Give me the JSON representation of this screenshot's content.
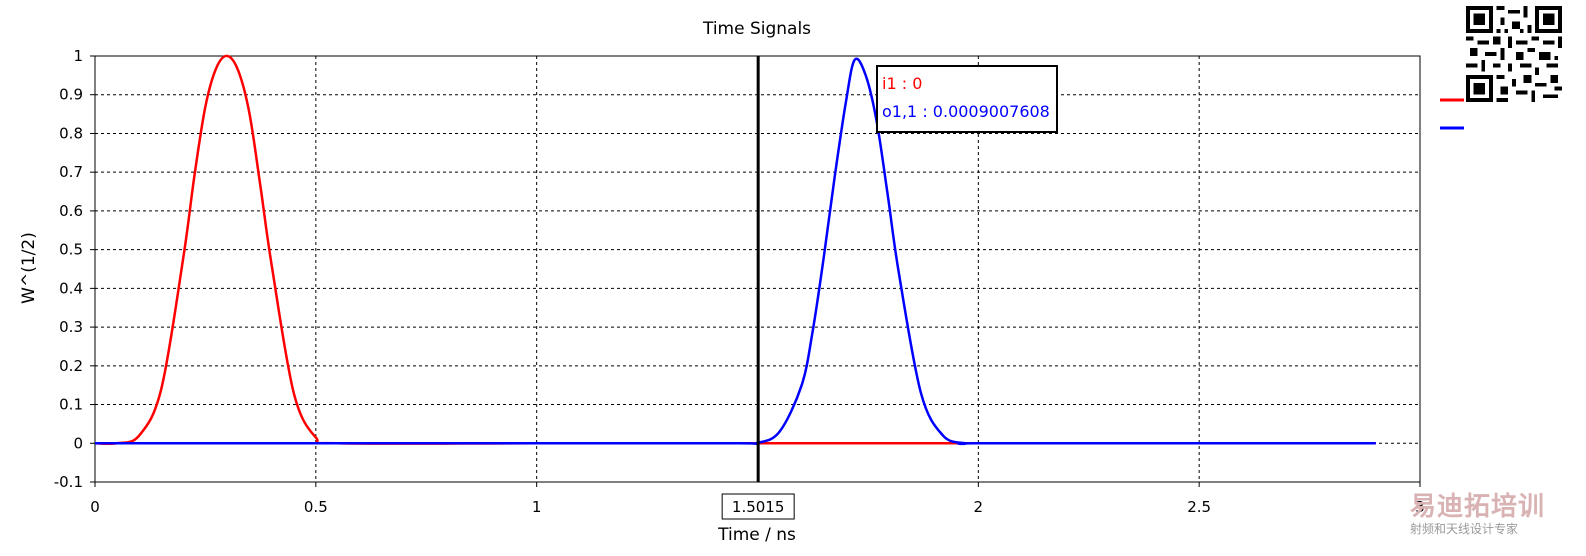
{
  "chart_data": {
    "type": "line",
    "title": "Time Signals",
    "xlabel": "Time / ns",
    "ylabel": "W^(1/2)",
    "xlim": [
      0,
      3
    ],
    "ylim": [
      -0.1,
      1
    ],
    "x_ticks": [
      "0",
      "0.5",
      "1",
      "1.5015",
      "2",
      "2.5",
      "3"
    ],
    "x_tick_values": [
      0,
      0.5,
      1,
      1.5015,
      2,
      2.5,
      3
    ],
    "y_ticks": [
      "-0.1",
      "0",
      "0.1",
      "0.2",
      "0.3",
      "0.4",
      "0.5",
      "0.6",
      "0.7",
      "0.8",
      "0.9",
      "1"
    ],
    "y_tick_values": [
      -0.1,
      0,
      0.1,
      0.2,
      0.3,
      0.4,
      0.5,
      0.6,
      0.7,
      0.8,
      0.9,
      1
    ],
    "grid": true,
    "legend": "right",
    "cursor": {
      "x": 1.5015,
      "x_label": "1.5015",
      "readouts": [
        {
          "text": "i1 : 0",
          "color": "#ff0000"
        },
        {
          "text": "o1,1 : 0.0009007608",
          "color": "#0000ff"
        }
      ]
    },
    "series": [
      {
        "color": "#ff0000",
        "x": [
          0,
          0.05,
          0.1,
          0.15,
          0.2,
          0.225,
          0.25,
          0.275,
          0.3,
          0.325,
          0.35,
          0.375,
          0.4,
          0.45,
          0.5,
          0.55,
          1.0,
          1.5,
          2.0,
          2.9
        ],
        "y": [
          0,
          0,
          0.02,
          0.14,
          0.48,
          0.69,
          0.87,
          0.97,
          1.0,
          0.96,
          0.85,
          0.66,
          0.46,
          0.13,
          0.015,
          0,
          0,
          0,
          0,
          0
        ]
      },
      {
        "color": "#0000ff",
        "x": [
          0,
          0.5,
          1.0,
          1.45,
          1.5,
          1.55,
          1.6,
          1.625,
          1.65,
          1.675,
          1.7,
          1.72,
          1.745,
          1.77,
          1.795,
          1.82,
          1.87,
          1.92,
          1.97,
          2.0,
          2.5,
          2.9
        ],
        "y": [
          0,
          0,
          0,
          0,
          0.001,
          0.03,
          0.15,
          0.29,
          0.48,
          0.69,
          0.88,
          0.99,
          0.95,
          0.83,
          0.64,
          0.44,
          0.13,
          0.02,
          0,
          0,
          0,
          0
        ]
      }
    ]
  }
}
